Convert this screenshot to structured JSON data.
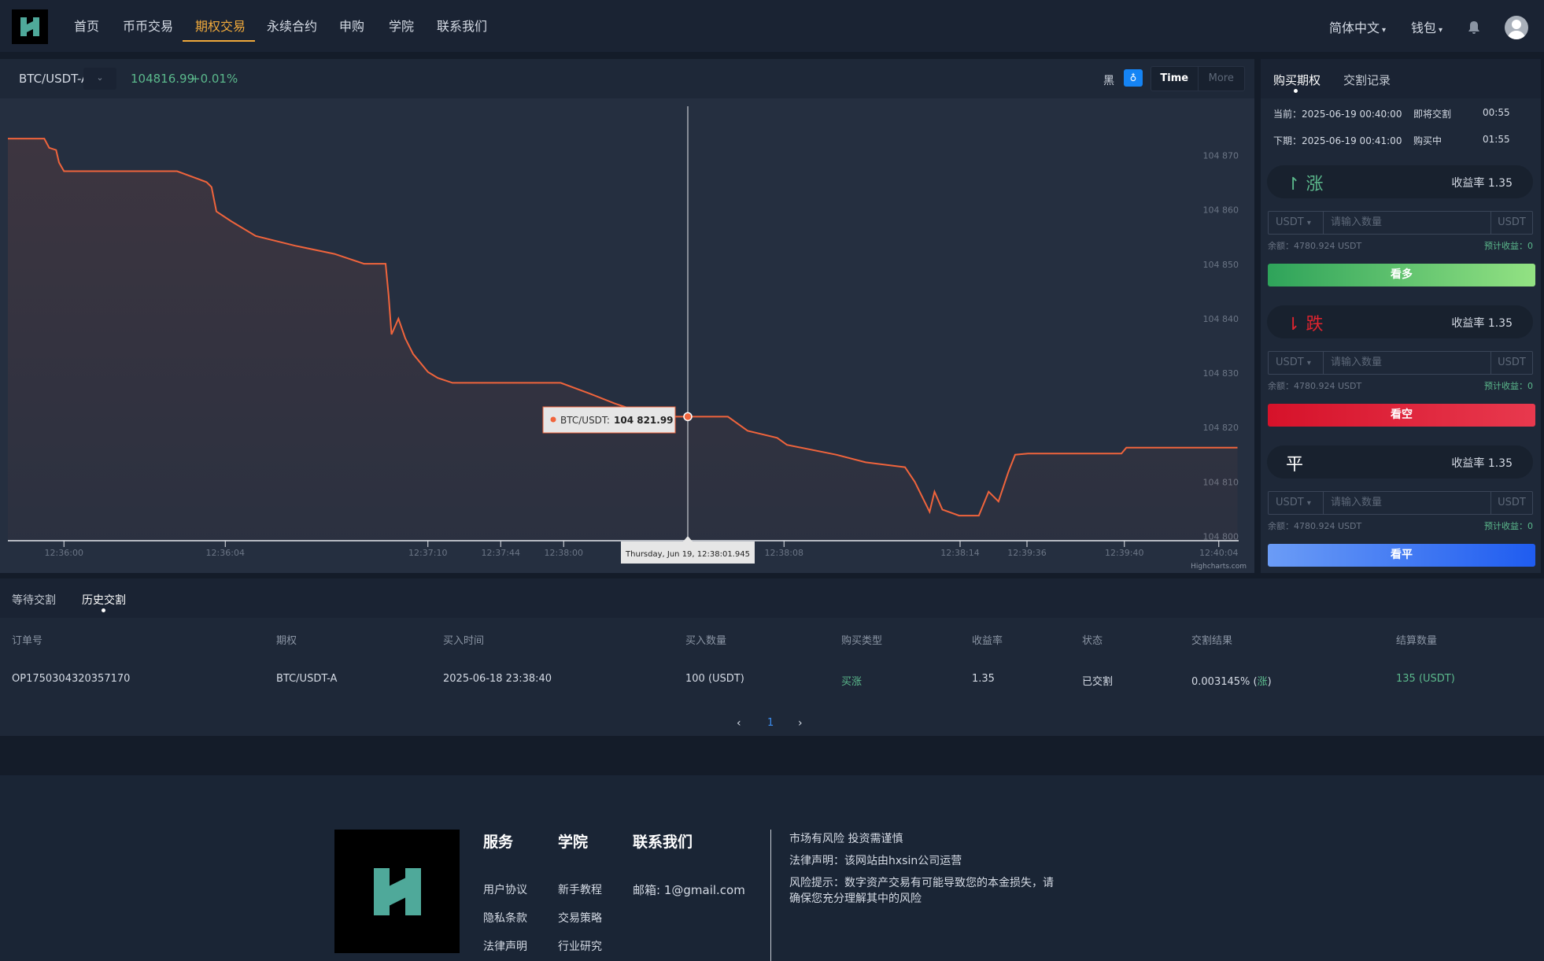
{
  "nav": {
    "items": [
      "首页",
      "币币交易",
      "期权交易",
      "永续合约",
      "申购",
      "学院",
      "联系我们"
    ],
    "active_index": 2,
    "language": "简体中文",
    "wallet": "钱包",
    "accent": "#f0a93b"
  },
  "ticker": {
    "pair": "BTC/USDT-A",
    "price": "104816.99",
    "change": "+0.01%",
    "theme_label": "黑",
    "range_buttons": [
      "Time",
      "More"
    ]
  },
  "chart_data": {
    "type": "line",
    "series": [
      {
        "name": "BTC/USDT",
        "values": [
          104873.1,
          104873.1,
          104871.4,
          104871.0,
          104868.7,
          104867.1,
          104867.1,
          104865.1,
          104864.2,
          104859.7,
          104857.9,
          104855.2,
          104853.4,
          104851.9,
          104850.1,
          104850.1,
          104844.3,
          104837.1,
          104840.0,
          104836.4,
          104833.5,
          104830.2,
          104829.1,
          104828.2,
          104828.2,
          104826.2,
          104824.4,
          104823.5,
          104821.99,
          104821.99,
          104821.99,
          104819.4,
          104818.1,
          104816.8,
          104815.0,
          104813.6,
          104812.7,
          104810.0,
          104804.5,
          104808.2,
          104804.9,
          104803.8,
          104803.8,
          104808.2,
          104806.4,
          104811.8,
          104815.0,
          104815.2,
          104815.2,
          104816.3,
          104816.3
        ]
      }
    ],
    "x_ticks": [
      "12:36:00",
      "12:36:04",
      "12:37:10",
      "12:37:44",
      "12:38:00",
      "12:38:08",
      "12:38:14",
      "12:39:36",
      "12:39:40",
      "12:40:04"
    ],
    "y_ticks": [
      "104 870",
      "104 860",
      "104 850",
      "104 840",
      "104 830",
      "104 820",
      "104 810",
      "104 800"
    ],
    "ylim": [
      104800,
      104870
    ],
    "tooltip": {
      "series": "BTC/USDT:",
      "value": "104 821.99",
      "date": "Thursday, Jun 19, 12:38:01.945"
    },
    "credit": "Highcharts.com",
    "line_color": "#f0643c",
    "grid": false
  },
  "order_panel": {
    "tabs": [
      "购买期权",
      "交割记录"
    ],
    "current_label": "当前：2025-06-19 00:40:00",
    "current_status": "即将交割",
    "current_time": "00:55",
    "next_label": "下期：2025-06-19 00:41:00",
    "next_status": "购买中",
    "next_time": "01:55",
    "options": [
      {
        "arrow": "↾",
        "dir": "涨",
        "rate": "收益率 1.35",
        "currency": "USDT",
        "placeholder": "请输入数量",
        "unit": "USDT",
        "balance": "余额：4780.924 USDT",
        "estimate": "预计收益：0",
        "button": "看多",
        "color": "#4cbf7b"
      },
      {
        "arrow": "⇂",
        "dir": "跌",
        "rate": "收益率 1.35",
        "currency": "USDT",
        "placeholder": "请输入数量",
        "unit": "USDT",
        "balance": "余额：4780.924 USDT",
        "estimate": "预计收益：0",
        "button": "看空",
        "color": "#e0242f"
      },
      {
        "arrow": "",
        "dir": "平",
        "rate": "收益率 1.35",
        "currency": "USDT",
        "placeholder": "请输入数量",
        "unit": "USDT",
        "balance": "余额：4780.924 USDT",
        "estimate": "预计收益：0",
        "button": "看平",
        "color": "#ffffff"
      }
    ]
  },
  "history": {
    "tabs": [
      "等待交割",
      "历史交割"
    ],
    "active_tab": 1,
    "columns": [
      "订单号",
      "期权",
      "买入时间",
      "买入数量",
      "购买类型",
      "收益率",
      "状态",
      "交割结果",
      "结算数量"
    ],
    "rows": [
      [
        "OP1750304320357170",
        "BTC/USDT-A",
        "2025-06-18 23:38:40",
        "100 (USDT)",
        "买涨",
        "1.35",
        "已交割",
        "0.003145% (",
        "涨",
        ")",
        "135 (USDT)"
      ]
    ],
    "page": "1"
  },
  "footer": {
    "columns": [
      {
        "title": "服务",
        "links": [
          "用户协议",
          "隐私条款",
          "法律声明"
        ]
      },
      {
        "title": "学院",
        "links": [
          "新手教程",
          "交易策略",
          "行业研究"
        ]
      },
      {
        "title": "联系我们",
        "links": [
          "邮箱: 1@gmail.com"
        ]
      }
    ],
    "notes": [
      "市场有风险 投资需谨慎",
      "法律声明：该网站由hxsin公司运营",
      "风险提示：数字资产交易有可能导致您的本金损失，请确保您充分理解其中的风险"
    ]
  }
}
